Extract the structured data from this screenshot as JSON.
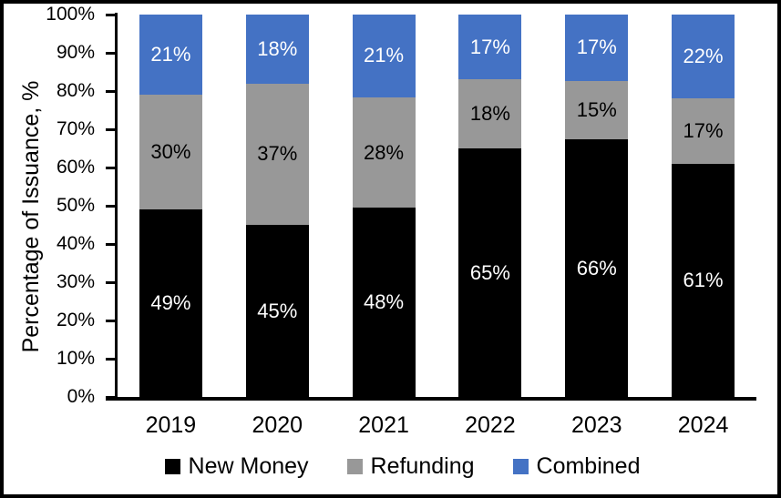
{
  "frame": {
    "background": "#FFFFFF",
    "border_color": "#000000"
  },
  "chart_data": {
    "type": "bar",
    "variant": "stacked-100",
    "title": "",
    "xlabel": "",
    "ylabel": "Percentage of Issuance, %",
    "categories": [
      "2019",
      "2020",
      "2021",
      "2022",
      "2023",
      "2024"
    ],
    "series": [
      {
        "name": "New Money",
        "color": "#000000",
        "label_color": "#FFFFFF",
        "values": [
          49,
          45,
          48,
          65,
          66,
          61
        ]
      },
      {
        "name": "Refunding",
        "color": "#989898",
        "label_color": "#000000",
        "values": [
          30,
          37,
          28,
          18,
          15,
          17
        ]
      },
      {
        "name": "Combined",
        "color": "#4472C4",
        "label_color": "#FFFFFF",
        "values": [
          21,
          18,
          21,
          17,
          17,
          22
        ]
      }
    ],
    "value_suffix": "%",
    "y_ticks": [
      "0%",
      "10%",
      "20%",
      "30%",
      "40%",
      "50%",
      "60%",
      "70%",
      "80%",
      "90%",
      "100%"
    ],
    "ylim": [
      0,
      100
    ],
    "grid": false,
    "legend_position": "bottom",
    "axis_color": "#000000",
    "text_color": "#000000"
  }
}
